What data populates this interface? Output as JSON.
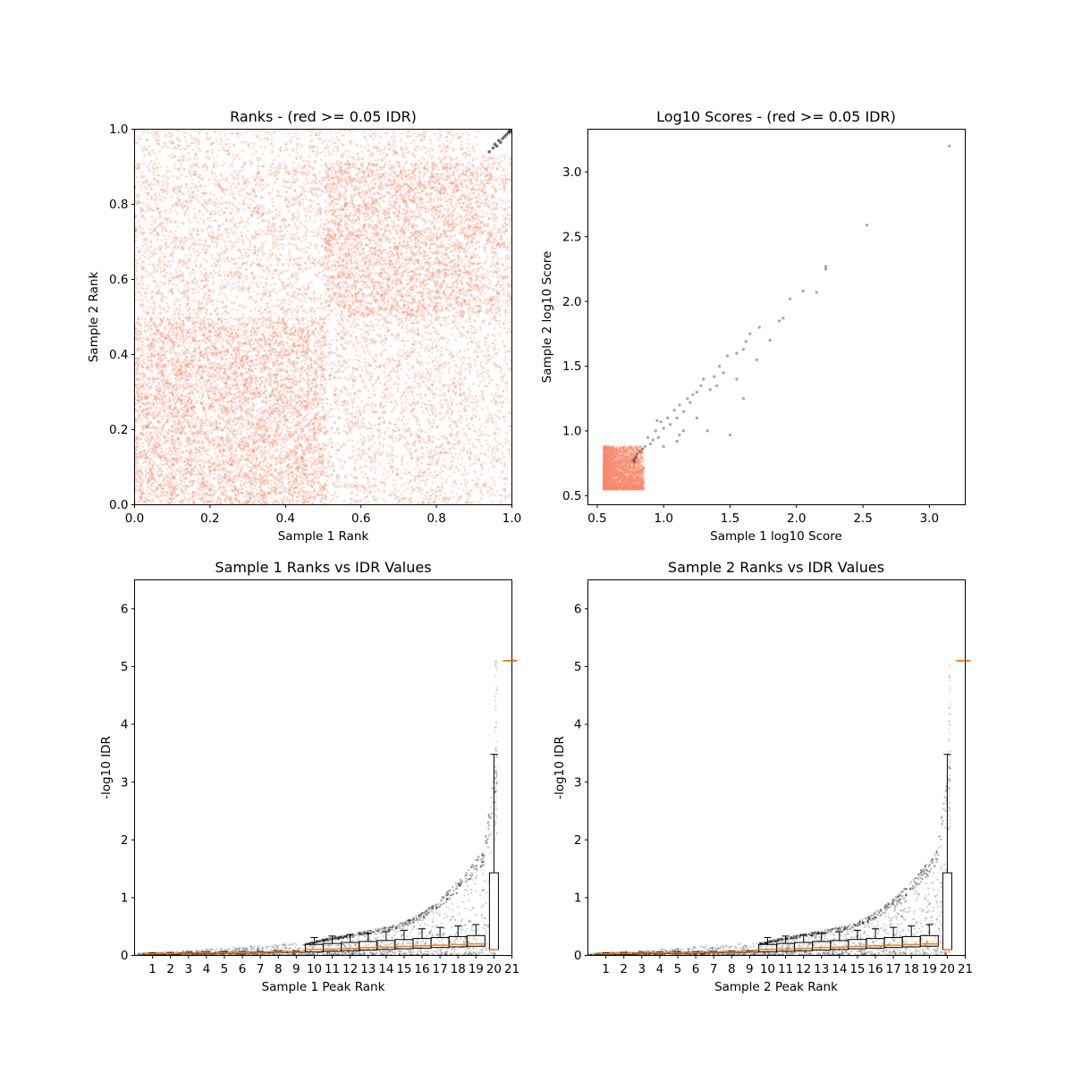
{
  "colors": {
    "salmon": "#fa8a6c",
    "black": "#000000",
    "box_median": "#ff7f0e",
    "frame": "#000000"
  },
  "chart_data": [
    {
      "id": "ranks",
      "type": "scatter",
      "title": "Ranks - (red >= 0.05 IDR)",
      "xlabel": "Sample 1 Rank",
      "ylabel": "Sample 2 Rank",
      "xlim": [
        0,
        1
      ],
      "ylim": [
        0,
        1
      ],
      "xticks": [
        0.0,
        0.2,
        0.4,
        0.6,
        0.8,
        1.0
      ],
      "yticks": [
        0.0,
        0.2,
        0.4,
        0.6,
        0.8,
        1.0
      ],
      "tick_format": 1,
      "grid": false,
      "series": [
        {
          "color_key": "salmon",
          "description_regions": [
            {
              "x": [
                0.0,
                0.505
              ],
              "y": [
                0.0,
                0.5
              ],
              "density": 1.0
            },
            {
              "x": [
                0.505,
                0.91
              ],
              "y": [
                0.5,
                0.91
              ],
              "density": 0.95
            },
            {
              "x": [
                0.0,
                0.505
              ],
              "y": [
                0.505,
                0.905
              ],
              "density": 0.45
            },
            {
              "x": [
                0.505,
                0.91
              ],
              "y": [
                0.0,
                0.5
              ],
              "density": 0.4
            },
            {
              "x": [
                0.91,
                1.0
              ],
              "y": [
                0.5,
                0.93
              ],
              "density": 0.6
            },
            {
              "x": [
                0.91,
                1.0
              ],
              "y": [
                0.0,
                0.5
              ],
              "density": 0.3
            },
            {
              "x": [
                0.0,
                0.505
              ],
              "y": [
                0.905,
                1.0
              ],
              "density": 0.3
            },
            {
              "x": [
                0.505,
                0.91
              ],
              "y": [
                0.905,
                1.0
              ],
              "density": 0.35
            }
          ]
        },
        {
          "color_key": "black",
          "points": [
            [
              0.94,
              0.94
            ],
            [
              0.95,
              0.95
            ],
            [
              0.955,
              0.96
            ],
            [
              0.96,
              0.955
            ],
            [
              0.965,
              0.97
            ],
            [
              0.97,
              0.965
            ],
            [
              0.975,
              0.975
            ],
            [
              0.98,
              0.98
            ],
            [
              0.985,
              0.985
            ],
            [
              0.99,
              0.99
            ],
            [
              0.993,
              0.995
            ],
            [
              0.996,
              0.993
            ],
            [
              0.999,
              0.999
            ]
          ]
        }
      ]
    },
    {
      "id": "scores",
      "type": "scatter",
      "title": "Log10 Scores - (red >= 0.05 IDR)",
      "xlabel": "Sample 1 log10 Score",
      "ylabel": "Sample 2 log10 Score",
      "xlim": [
        0.43,
        3.27
      ],
      "ylim": [
        0.43,
        3.33
      ],
      "xticks": [
        0.5,
        1.0,
        1.5,
        2.0,
        2.5,
        3.0
      ],
      "yticks": [
        0.5,
        1.0,
        1.5,
        2.0,
        2.5,
        3.0
      ],
      "tick_format": 1,
      "grid": false,
      "series": [
        {
          "color_key": "salmon",
          "description_region": {
            "x": [
              0.55,
              0.85
            ],
            "y": [
              0.55,
              0.88
            ]
          }
        },
        {
          "color_key": "black",
          "points": [
            [
              3.15,
              3.2
            ],
            [
              2.53,
              2.59
            ],
            [
              2.22,
              2.27
            ],
            [
              2.22,
              2.25
            ],
            [
              2.15,
              2.07
            ],
            [
              2.05,
              2.08
            ],
            [
              1.95,
              2.02
            ],
            [
              1.9,
              1.87
            ],
            [
              1.87,
              1.85
            ],
            [
              1.72,
              1.8
            ],
            [
              1.65,
              1.75
            ],
            [
              1.62,
              1.69
            ],
            [
              1.6,
              1.63
            ],
            [
              1.55,
              1.6
            ],
            [
              1.48,
              1.58
            ],
            [
              1.45,
              1.45
            ],
            [
              1.42,
              1.5
            ],
            [
              1.38,
              1.42
            ],
            [
              1.35,
              1.32
            ],
            [
              1.3,
              1.4
            ],
            [
              1.28,
              1.35
            ],
            [
              1.25,
              1.3
            ],
            [
              1.22,
              1.28
            ],
            [
              1.2,
              1.22
            ],
            [
              1.18,
              1.25
            ],
            [
              1.15,
              1.15
            ],
            [
              1.12,
              1.2
            ],
            [
              1.1,
              1.1
            ],
            [
              1.08,
              1.16
            ],
            [
              1.05,
              1.05
            ],
            [
              1.03,
              1.1
            ],
            [
              1.0,
              1.02
            ],
            [
              0.98,
              1.07
            ],
            [
              0.96,
              0.95
            ],
            [
              0.94,
              1.0
            ],
            [
              0.92,
              0.93
            ],
            [
              0.9,
              0.9
            ],
            [
              0.88,
              0.95
            ],
            [
              0.86,
              0.88
            ],
            [
              0.84,
              0.86
            ],
            [
              0.82,
              0.84
            ],
            [
              0.8,
              0.82
            ],
            [
              0.79,
              0.8
            ],
            [
              0.78,
              0.78
            ],
            [
              0.77,
              0.77
            ],
            [
              0.78,
              0.76
            ],
            [
              0.79,
              0.79
            ],
            [
              1.33,
              1.0
            ],
            [
              1.12,
              0.97
            ],
            [
              1.5,
              0.97
            ],
            [
              1.6,
              1.25
            ],
            [
              1.7,
              1.55
            ],
            [
              1.8,
              1.7
            ],
            [
              0.95,
              1.08
            ],
            [
              1.1,
              0.92
            ],
            [
              1.0,
              0.88
            ],
            [
              1.25,
              1.1
            ],
            [
              1.15,
              1.0
            ],
            [
              1.4,
              1.35
            ],
            [
              1.55,
              1.4
            ]
          ]
        }
      ]
    },
    {
      "id": "s1",
      "type": "scatter",
      "title": "Sample 1 Ranks vs IDR Values",
      "xlabel": "Sample 1 Peak Rank",
      "ylabel": "-log10 IDR",
      "xlim": [
        0,
        21
      ],
      "ylim": [
        0,
        6.5
      ],
      "xticks": [
        "1",
        "2",
        "3",
        "4",
        "5",
        "6",
        "7",
        "8",
        "9",
        "10",
        "11",
        "12",
        "13",
        "14",
        "15",
        "16",
        "17",
        "18",
        "19",
        "20",
        "21"
      ],
      "yticks": [
        0,
        1,
        2,
        3,
        4,
        5,
        6
      ],
      "tick_format": 0,
      "grid": false,
      "outlier_max": 5.1,
      "box_top": 1.43,
      "whisker_top": 3.48,
      "series": [
        {
          "name": "points",
          "color_key": "black"
        },
        {
          "name": "boxes",
          "color_key": "box_median"
        }
      ]
    },
    {
      "id": "s2",
      "type": "scatter",
      "title": "Sample 2 Ranks vs IDR Values",
      "xlabel": "Sample 2 Peak Rank",
      "ylabel": "-log10 IDR",
      "xlim": [
        0,
        21
      ],
      "ylim": [
        0,
        6.5
      ],
      "xticks": [
        "1",
        "2",
        "3",
        "4",
        "5",
        "6",
        "7",
        "8",
        "9",
        "10",
        "11",
        "12",
        "13",
        "14",
        "15",
        "16",
        "17",
        "18",
        "19",
        "20",
        "21"
      ],
      "yticks": [
        0,
        1,
        2,
        3,
        4,
        5,
        6
      ],
      "tick_format": 0,
      "grid": false,
      "outlier_max": 5.1,
      "box_top": 1.43,
      "whisker_top": 3.48,
      "series": [
        {
          "name": "points",
          "color_key": "black"
        },
        {
          "name": "boxes",
          "color_key": "box_median"
        }
      ]
    }
  ]
}
